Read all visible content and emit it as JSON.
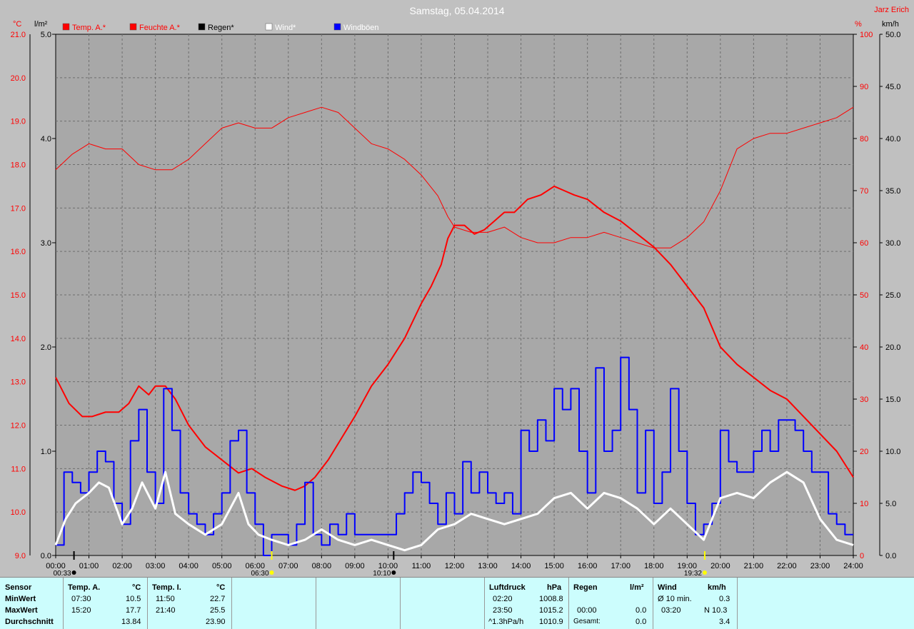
{
  "title": "Samstag, 05.04.2014",
  "author": "Jarz Erich",
  "units": {
    "temp": "°C",
    "rain": "l/m²",
    "humidity": "%",
    "wind": "km/h"
  },
  "legend": [
    {
      "name": "Temp. A.*",
      "color": "#ff0000",
      "text_color": "#ff0000"
    },
    {
      "name": "Feuchte A.*",
      "color": "#ff0000",
      "text_color": "#ff0000"
    },
    {
      "name": "Regen*",
      "color": "#000000",
      "text_color": "#000000"
    },
    {
      "name": "Wind*",
      "color": "#ffffff",
      "text_color": "#ffffff"
    },
    {
      "name": "Windböen",
      "color": "#0000ff",
      "text_color": "#ffffff"
    }
  ],
  "markers": [
    {
      "time": "00:33",
      "x": 0.55,
      "color": "#000000"
    },
    {
      "time": "06:30",
      "x": 6.5,
      "color": "#ffff00"
    },
    {
      "time": "10:10",
      "x": 10.17,
      "color": "#000000"
    },
    {
      "time": "19:32",
      "x": 19.53,
      "color": "#ffff00"
    }
  ],
  "chart_data": {
    "type": "line",
    "xlim": [
      0,
      24
    ],
    "xticks": [
      "00:00",
      "01:00",
      "02:00",
      "03:00",
      "04:00",
      "05:00",
      "06:00",
      "07:00",
      "08:00",
      "09:00",
      "10:00",
      "11:00",
      "12:00",
      "13:00",
      "14:00",
      "15:00",
      "16:00",
      "17:00",
      "18:00",
      "19:00",
      "20:00",
      "21:00",
      "22:00",
      "23:00",
      "24:00"
    ],
    "axes": {
      "temp": {
        "ylim": [
          9,
          21
        ],
        "ticks": [
          "9.0",
          "10.0",
          "11.0",
          "12.0",
          "13.0",
          "14.0",
          "15.0",
          "16.0",
          "17.0",
          "18.0",
          "19.0",
          "20.0",
          "21.0"
        ]
      },
      "rain": {
        "ylim": [
          0,
          5
        ],
        "ticks": [
          "0.0",
          "1.0",
          "2.0",
          "3.0",
          "4.0",
          "5.0"
        ]
      },
      "humidity": {
        "ylim": [
          0,
          100
        ],
        "ticks": [
          "0",
          "10",
          "20",
          "30",
          "40",
          "50",
          "60",
          "70",
          "80",
          "90",
          "100"
        ]
      },
      "wind": {
        "ylim": [
          0,
          50
        ],
        "ticks": [
          "0.0",
          "5.0",
          "10.0",
          "15.0",
          "20.0",
          "25.0",
          "30.0",
          "35.0",
          "40.0",
          "45.0",
          "50.0"
        ]
      }
    },
    "series": [
      {
        "name": "Temp. A.*",
        "axis": "temp",
        "color": "#ff0000",
        "width": 2,
        "x": [
          0,
          0.4,
          0.8,
          1.1,
          1.5,
          1.9,
          2.2,
          2.5,
          2.8,
          3.0,
          3.3,
          3.6,
          4.0,
          4.5,
          5.0,
          5.5,
          5.9,
          6.3,
          6.8,
          7.2,
          7.5,
          7.8,
          8.2,
          8.6,
          9.0,
          9.5,
          10.0,
          10.5,
          11.0,
          11.3,
          11.6,
          11.8,
          12.0,
          12.3,
          12.6,
          12.9,
          13.2,
          13.5,
          13.8,
          14.2,
          14.6,
          15.0,
          15.3,
          15.6,
          16.0,
          16.5,
          17.0,
          17.5,
          18.0,
          18.5,
          19.0,
          19.5,
          20.0,
          20.5,
          21.0,
          21.5,
          22.0,
          22.5,
          23.0,
          23.5,
          24.0
        ],
        "y": [
          13.1,
          12.5,
          12.2,
          12.2,
          12.3,
          12.3,
          12.5,
          12.9,
          12.7,
          12.9,
          12.9,
          12.6,
          12.0,
          11.5,
          11.2,
          10.9,
          11.0,
          10.8,
          10.6,
          10.5,
          10.6,
          10.8,
          11.2,
          11.7,
          12.2,
          12.9,
          13.4,
          14.0,
          14.8,
          15.2,
          15.7,
          16.3,
          16.6,
          16.6,
          16.4,
          16.5,
          16.7,
          16.9,
          16.9,
          17.2,
          17.3,
          17.5,
          17.4,
          17.3,
          17.2,
          16.9,
          16.7,
          16.4,
          16.1,
          15.7,
          15.2,
          14.7,
          13.8,
          13.4,
          13.1,
          12.8,
          12.6,
          12.2,
          11.8,
          11.4,
          10.8
        ]
      },
      {
        "name": "Feuchte A.*",
        "axis": "humidity",
        "color": "#ff0000",
        "width": 1,
        "x": [
          0,
          0.5,
          1.0,
          1.5,
          2.0,
          2.5,
          3.0,
          3.5,
          4.0,
          4.5,
          5.0,
          5.5,
          6.0,
          6.5,
          7.0,
          7.5,
          8.0,
          8.5,
          9.0,
          9.5,
          10.0,
          10.5,
          11.0,
          11.5,
          11.8,
          12.0,
          12.5,
          13.0,
          13.5,
          14.0,
          14.5,
          15.0,
          15.5,
          16.0,
          16.5,
          17.0,
          17.5,
          18.0,
          18.5,
          19.0,
          19.5,
          20.0,
          20.5,
          21.0,
          21.5,
          22.0,
          22.5,
          23.0,
          23.5,
          24.0
        ],
        "y": [
          74,
          77,
          79,
          78,
          78,
          75,
          74,
          74,
          76,
          79,
          82,
          83,
          82,
          82,
          84,
          85,
          86,
          85,
          82,
          79,
          78,
          76,
          73,
          69,
          65,
          63,
          62,
          62,
          63,
          61,
          60,
          60,
          61,
          61,
          62,
          61,
          60,
          59,
          59,
          61,
          64,
          70,
          78,
          80,
          81,
          81,
          82,
          83,
          84,
          86
        ]
      },
      {
        "name": "Wind*",
        "axis": "wind",
        "color": "#ffffff",
        "width": 3,
        "x": [
          0,
          0.3,
          0.6,
          1.0,
          1.3,
          1.6,
          2.0,
          2.3,
          2.6,
          3.0,
          3.3,
          3.6,
          4.0,
          4.5,
          5.0,
          5.5,
          5.8,
          6.1,
          6.5,
          7.0,
          7.5,
          8.0,
          8.5,
          9.0,
          9.5,
          10.0,
          10.5,
          11.0,
          11.5,
          12.0,
          12.5,
          13.0,
          13.5,
          14.0,
          14.5,
          15.0,
          15.5,
          16.0,
          16.5,
          17.0,
          17.5,
          18.0,
          18.5,
          19.0,
          19.5,
          20.0,
          20.5,
          21.0,
          21.5,
          22.0,
          22.5,
          23.0,
          23.5,
          24.0
        ],
        "y": [
          1.0,
          3.5,
          5.0,
          6.0,
          7.0,
          6.5,
          3.0,
          4.5,
          7.0,
          4.5,
          8.0,
          4.0,
          3.0,
          2.0,
          3.0,
          6.0,
          3.0,
          2.0,
          1.5,
          1.0,
          1.5,
          2.5,
          1.5,
          1.0,
          1.5,
          1.0,
          0.5,
          1.0,
          2.5,
          3.0,
          4.0,
          3.5,
          3.0,
          3.5,
          4.0,
          5.5,
          6.0,
          4.5,
          6.0,
          5.5,
          4.5,
          3.0,
          4.5,
          3.0,
          1.5,
          5.5,
          6.0,
          5.5,
          7.0,
          8.0,
          7.0,
          3.5,
          1.5,
          1.0
        ]
      },
      {
        "name": "Windböen",
        "axis": "wind",
        "color": "#0000ff",
        "width": 2,
        "x": [
          0,
          0.25,
          0.5,
          0.75,
          1.0,
          1.25,
          1.5,
          1.75,
          2.0,
          2.25,
          2.5,
          2.75,
          3.0,
          3.25,
          3.5,
          3.75,
          4.0,
          4.25,
          4.5,
          4.75,
          5.0,
          5.25,
          5.5,
          5.75,
          6.0,
          6.25,
          6.5,
          6.75,
          7.0,
          7.25,
          7.5,
          7.75,
          8.0,
          8.25,
          8.5,
          8.75,
          9.0,
          9.25,
          9.5,
          9.75,
          10.0,
          10.25,
          10.5,
          10.75,
          11.0,
          11.25,
          11.5,
          11.75,
          12.0,
          12.25,
          12.5,
          12.75,
          13.0,
          13.25,
          13.5,
          13.75,
          14.0,
          14.25,
          14.5,
          14.75,
          15.0,
          15.25,
          15.5,
          15.75,
          16.0,
          16.25,
          16.5,
          16.75,
          17.0,
          17.25,
          17.5,
          17.75,
          18.0,
          18.25,
          18.5,
          18.75,
          19.0,
          19.25,
          19.5,
          19.75,
          20.0,
          20.25,
          20.5,
          20.75,
          21.0,
          21.25,
          21.5,
          21.75,
          22.0,
          22.25,
          22.5,
          22.75,
          23.0,
          23.25,
          23.5,
          23.75,
          24.0
        ],
        "y": [
          1.0,
          8.0,
          7.0,
          6.0,
          8.0,
          10.0,
          9.0,
          5.0,
          3.0,
          11.0,
          14.0,
          8.0,
          5.0,
          16.0,
          12.0,
          6.0,
          4.0,
          3.0,
          2.0,
          4.0,
          6.0,
          11.0,
          12.0,
          6.0,
          3.0,
          0.0,
          2.0,
          2.0,
          1.0,
          3.0,
          7.0,
          2.0,
          1.0,
          3.0,
          2.0,
          4.0,
          2.0,
          2.0,
          2.0,
          2.0,
          2.0,
          4.0,
          6.0,
          8.0,
          7.0,
          5.0,
          3.0,
          6.0,
          4.0,
          9.0,
          6.0,
          8.0,
          6.0,
          5.0,
          6.0,
          4.0,
          12.0,
          10.0,
          13.0,
          11.0,
          16.0,
          14.0,
          16.0,
          10.0,
          6.0,
          18.0,
          10.0,
          12.0,
          19.0,
          14.0,
          6.0,
          12.0,
          5.0,
          8.0,
          16.0,
          10.0,
          5.0,
          2.0,
          3.0,
          5.0,
          12.0,
          9.0,
          8.0,
          8.0,
          10.0,
          12.0,
          10.0,
          13.0,
          13.0,
          12.0,
          10.0,
          8.0,
          8.0,
          4.0,
          3.0,
          2.0,
          2.0
        ]
      },
      {
        "name": "Regen*",
        "axis": "rain",
        "color": "#000000",
        "width": 1,
        "x": [
          0,
          24
        ],
        "y": [
          0,
          0
        ]
      }
    ]
  },
  "table": {
    "sensor": {
      "header": "Sensor",
      "rows": [
        "MinWert",
        "MaxWert",
        "Durchschnitt"
      ]
    },
    "temp_a": {
      "header": "Temp. A.",
      "unit": "°C",
      "rows": [
        [
          "07:30",
          "10.5"
        ],
        [
          "15:20",
          "17.7"
        ],
        [
          "",
          "13.84"
        ]
      ]
    },
    "temp_i": {
      "header": "Temp. I.",
      "unit": "°C",
      "rows": [
        [
          "11:50",
          "22.7"
        ],
        [
          "21:40",
          "25.5"
        ],
        [
          "",
          "23.90"
        ]
      ]
    },
    "luftdruck": {
      "header": "Luftdruck",
      "unit": "hPa",
      "rows": [
        [
          "02:20",
          "1008.8"
        ],
        [
          "23:50",
          "1015.2"
        ],
        [
          "^1.3hPa/h",
          "1010.9"
        ]
      ]
    },
    "regen": {
      "header": "Regen",
      "unit": "l/m²",
      "rows": [
        [
          "",
          ""
        ],
        [
          "00:00",
          "0.0"
        ],
        [
          "Gesamt:",
          "0.0"
        ]
      ]
    },
    "wind": {
      "header": "Wind",
      "unit": "km/h",
      "rows": [
        [
          "Ø 10 min.",
          "0.3"
        ],
        [
          "03:20",
          "N 10.3"
        ],
        [
          "",
          "3.4"
        ]
      ]
    }
  }
}
